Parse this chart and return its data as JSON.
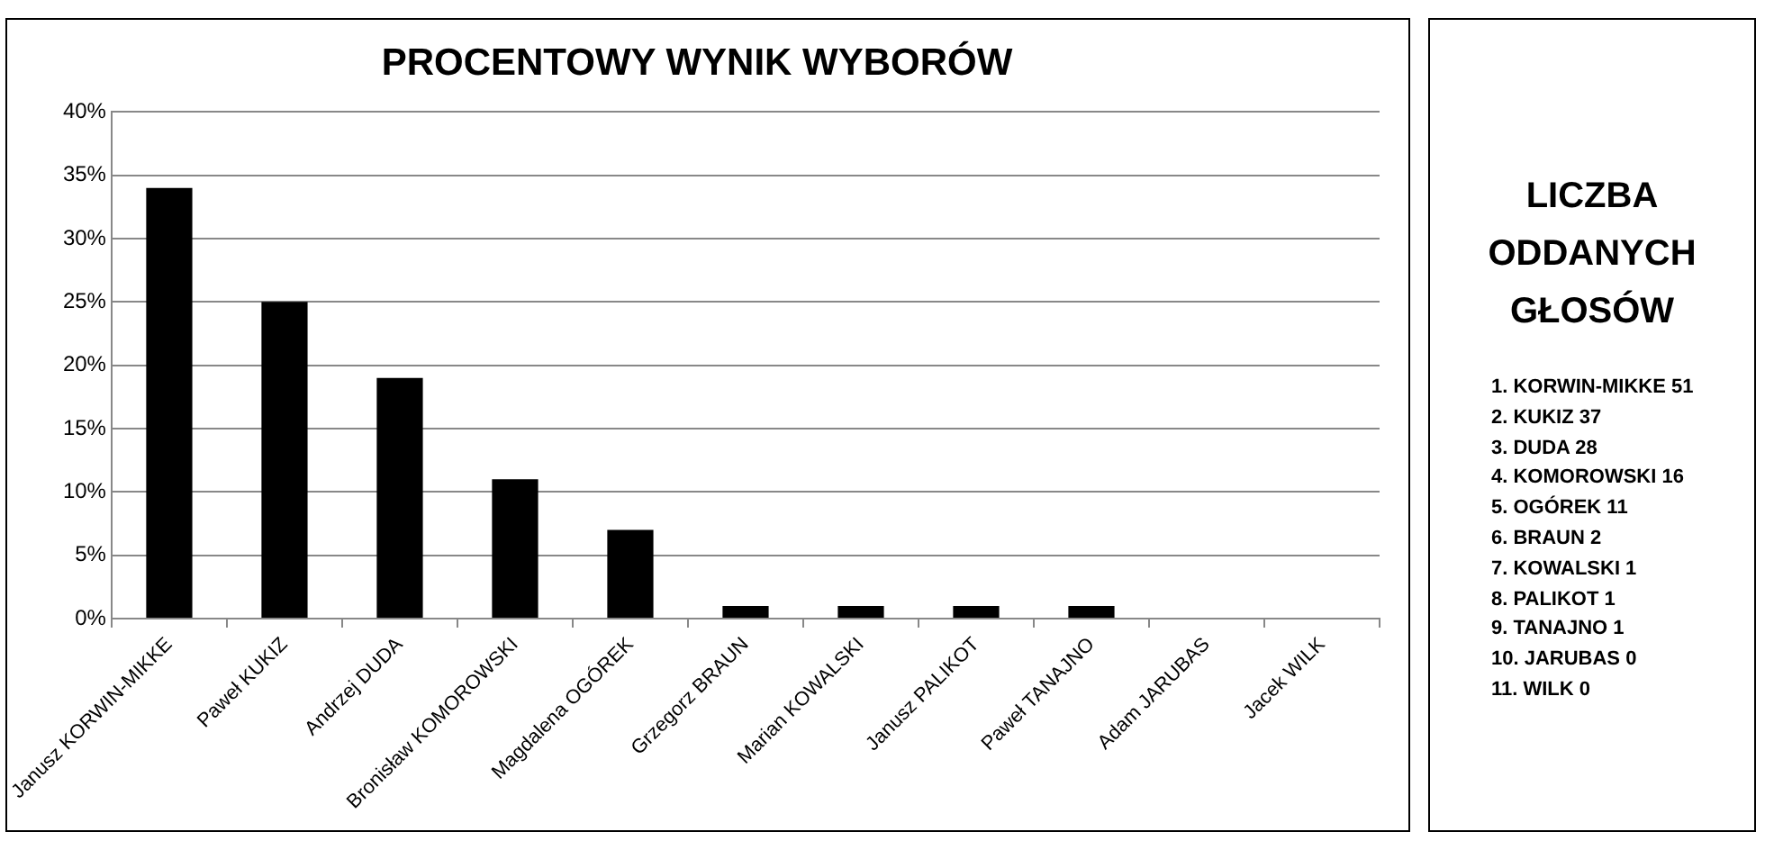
{
  "chart_data": [
    {
      "type": "bar",
      "title": "PROCENTOWY WYNIK WYBORÓW",
      "categories": [
        "Janusz KORWIN-MIKKE",
        "Paweł KUKIZ",
        "Andrzej DUDA",
        "Bronisław KOMOROWSKI",
        "Magdalena OGÓREK",
        "Grzegorz BRAUN",
        "Marian KOWALSKI",
        "Janusz PALIKOT",
        "Paweł TANAJNO",
        "Adam JARUBAS",
        "Jacek WILK"
      ],
      "values": [
        34,
        25,
        19,
        11,
        7,
        1,
        1,
        1,
        1,
        0,
        0
      ],
      "color": "#000000",
      "ylim": [
        0,
        40
      ],
      "yticks": [
        {
          "value": 0,
          "label": "0%"
        },
        {
          "value": 5,
          "label": "5%"
        },
        {
          "value": 10,
          "label": "10%"
        },
        {
          "value": 15,
          "label": "15%"
        },
        {
          "value": 20,
          "label": "20%"
        },
        {
          "value": 25,
          "label": "25%"
        },
        {
          "value": 30,
          "label": "30%"
        },
        {
          "value": 35,
          "label": "35%"
        },
        {
          "value": 40,
          "label": "40%"
        }
      ],
      "grid": "y",
      "legend": false
    },
    {
      "type": "other",
      "title": "LICZBA ODDANYCH GŁOSÓW",
      "annotations": [
        "1. KORWIN-MIKKE 51",
        "2. KUKIZ 37",
        "3. DUDA 28",
        "4. KOMOROWSKI 16",
        "5. OGÓREK 11",
        "6. BRAUN 2",
        "7. KOWALSKI 1",
        "8. PALIKOT 1",
        "9. TANAJNO 1",
        "10. JARUBAS 0",
        "11. WILK 0"
      ]
    }
  ]
}
